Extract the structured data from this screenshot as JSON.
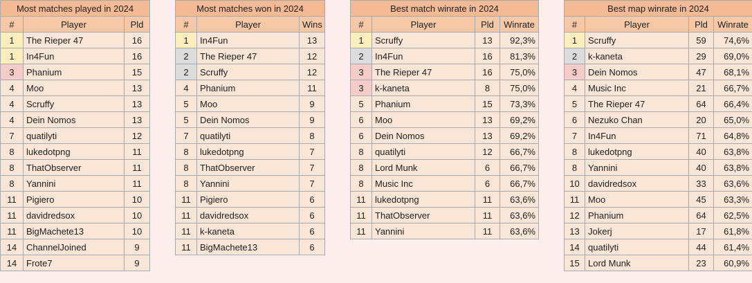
{
  "colors": {
    "page_bg": "#ffeeee",
    "title_bg": "#f5b994",
    "header_bg": "#f7c8a6",
    "cell_bg": "#f9e6d6",
    "gold": "#fbeebc",
    "silver": "#dcdcdc",
    "bronze": "#f5ccc8"
  },
  "tables": [
    {
      "title": "Most matches played in 2024",
      "headers": [
        "#",
        "Player",
        "Pld"
      ],
      "rows": [
        {
          "rank": "1",
          "player": "The Rieper 47",
          "c1": "16",
          "medal": "gold"
        },
        {
          "rank": "1",
          "player": "In4Fun",
          "c1": "16",
          "medal": "gold"
        },
        {
          "rank": "3",
          "player": "Phanium",
          "c1": "15",
          "medal": "bronze"
        },
        {
          "rank": "4",
          "player": "Moo",
          "c1": "13"
        },
        {
          "rank": "4",
          "player": "Scruffy",
          "c1": "13"
        },
        {
          "rank": "4",
          "player": "Dein Nomos",
          "c1": "13"
        },
        {
          "rank": "7",
          "player": "quatilyti",
          "c1": "12"
        },
        {
          "rank": "8",
          "player": "lukedotpng",
          "c1": "11"
        },
        {
          "rank": "8",
          "player": "ThatObserver",
          "c1": "11"
        },
        {
          "rank": "8",
          "player": "Yannini",
          "c1": "11"
        },
        {
          "rank": "11",
          "player": "Pigiero",
          "c1": "10"
        },
        {
          "rank": "11",
          "player": "davidredsox",
          "c1": "10"
        },
        {
          "rank": "11",
          "player": "BigMachete13",
          "c1": "10"
        },
        {
          "rank": "14",
          "player": "ChannelJoined",
          "c1": "9"
        },
        {
          "rank": "14",
          "player": "Frote7",
          "c1": "9"
        }
      ]
    },
    {
      "title": "Most matches won in 2024",
      "headers": [
        "#",
        "Player",
        "Wins"
      ],
      "rows": [
        {
          "rank": "1",
          "player": "In4Fun",
          "c1": "13",
          "medal": "gold"
        },
        {
          "rank": "2",
          "player": "The Rieper 47",
          "c1": "12",
          "medal": "silver"
        },
        {
          "rank": "2",
          "player": "Scruffy",
          "c1": "12",
          "medal": "silver"
        },
        {
          "rank": "4",
          "player": "Phanium",
          "c1": "11"
        },
        {
          "rank": "5",
          "player": "Moo",
          "c1": "9"
        },
        {
          "rank": "5",
          "player": "Dein Nomos",
          "c1": "9"
        },
        {
          "rank": "7",
          "player": "quatilyti",
          "c1": "8"
        },
        {
          "rank": "8",
          "player": "lukedotpng",
          "c1": "7"
        },
        {
          "rank": "8",
          "player": "ThatObserver",
          "c1": "7"
        },
        {
          "rank": "8",
          "player": "Yannini",
          "c1": "7"
        },
        {
          "rank": "11",
          "player": "Pigiero",
          "c1": "6"
        },
        {
          "rank": "11",
          "player": "davidredsox",
          "c1": "6"
        },
        {
          "rank": "11",
          "player": "k-kaneta",
          "c1": "6"
        },
        {
          "rank": "11",
          "player": "BigMachete13",
          "c1": "6"
        }
      ]
    },
    {
      "title": "Best match winrate in 2024",
      "headers": [
        "#",
        "Player",
        "Pld",
        "Winrate"
      ],
      "rows": [
        {
          "rank": "1",
          "player": "Scruffy",
          "c1": "13",
          "c2": "92,3%",
          "medal": "gold"
        },
        {
          "rank": "2",
          "player": "In4Fun",
          "c1": "16",
          "c2": "81,3%",
          "medal": "silver"
        },
        {
          "rank": "3",
          "player": "The Rieper 47",
          "c1": "16",
          "c2": "75,0%",
          "medal": "bronze"
        },
        {
          "rank": "3",
          "player": "k-kaneta",
          "c1": "8",
          "c2": "75,0%",
          "medal": "bronze"
        },
        {
          "rank": "5",
          "player": "Phanium",
          "c1": "15",
          "c2": "73,3%"
        },
        {
          "rank": "6",
          "player": "Moo",
          "c1": "13",
          "c2": "69,2%"
        },
        {
          "rank": "6",
          "player": "Dein Nomos",
          "c1": "13",
          "c2": "69,2%"
        },
        {
          "rank": "8",
          "player": "quatilyti",
          "c1": "12",
          "c2": "66,7%"
        },
        {
          "rank": "8",
          "player": "Lord Munk",
          "c1": "6",
          "c2": "66,7%"
        },
        {
          "rank": "8",
          "player": "Music Inc",
          "c1": "6",
          "c2": "66,7%"
        },
        {
          "rank": "11",
          "player": "lukedotpng",
          "c1": "11",
          "c2": "63,6%"
        },
        {
          "rank": "11",
          "player": "ThatObserver",
          "c1": "11",
          "c2": "63,6%"
        },
        {
          "rank": "11",
          "player": "Yannini",
          "c1": "11",
          "c2": "63,6%"
        }
      ]
    },
    {
      "title": "Best map winrate in 2024",
      "headers": [
        "#",
        "Player",
        "Pld",
        "Winrate"
      ],
      "rows": [
        {
          "rank": "1",
          "player": "Scruffy",
          "c1": "59",
          "c2": "74,6%",
          "medal": "gold"
        },
        {
          "rank": "2",
          "player": "k-kaneta",
          "c1": "29",
          "c2": "69,0%",
          "medal": "silver"
        },
        {
          "rank": "3",
          "player": "Dein Nomos",
          "c1": "47",
          "c2": "68,1%",
          "medal": "bronze"
        },
        {
          "rank": "4",
          "player": "Music Inc",
          "c1": "21",
          "c2": "66,7%"
        },
        {
          "rank": "5",
          "player": "The Rieper 47",
          "c1": "64",
          "c2": "66,4%"
        },
        {
          "rank": "6",
          "player": "Nezuko Chan",
          "c1": "20",
          "c2": "65,0%"
        },
        {
          "rank": "7",
          "player": "In4Fun",
          "c1": "71",
          "c2": "64,8%"
        },
        {
          "rank": "8",
          "player": "lukedotpng",
          "c1": "40",
          "c2": "63,8%"
        },
        {
          "rank": "8",
          "player": "Yannini",
          "c1": "40",
          "c2": "63,8%"
        },
        {
          "rank": "10",
          "player": "davidredsox",
          "c1": "33",
          "c2": "63,6%"
        },
        {
          "rank": "11",
          "player": "Moo",
          "c1": "45",
          "c2": "63,3%"
        },
        {
          "rank": "12",
          "player": "Phanium",
          "c1": "64",
          "c2": "62,5%"
        },
        {
          "rank": "13",
          "player": "Jokerj",
          "c1": "17",
          "c2": "61,8%"
        },
        {
          "rank": "14",
          "player": "quatilyti",
          "c1": "44",
          "c2": "61,4%"
        },
        {
          "rank": "15",
          "player": "Lord Munk",
          "c1": "23",
          "c2": "60,9%"
        }
      ]
    }
  ]
}
